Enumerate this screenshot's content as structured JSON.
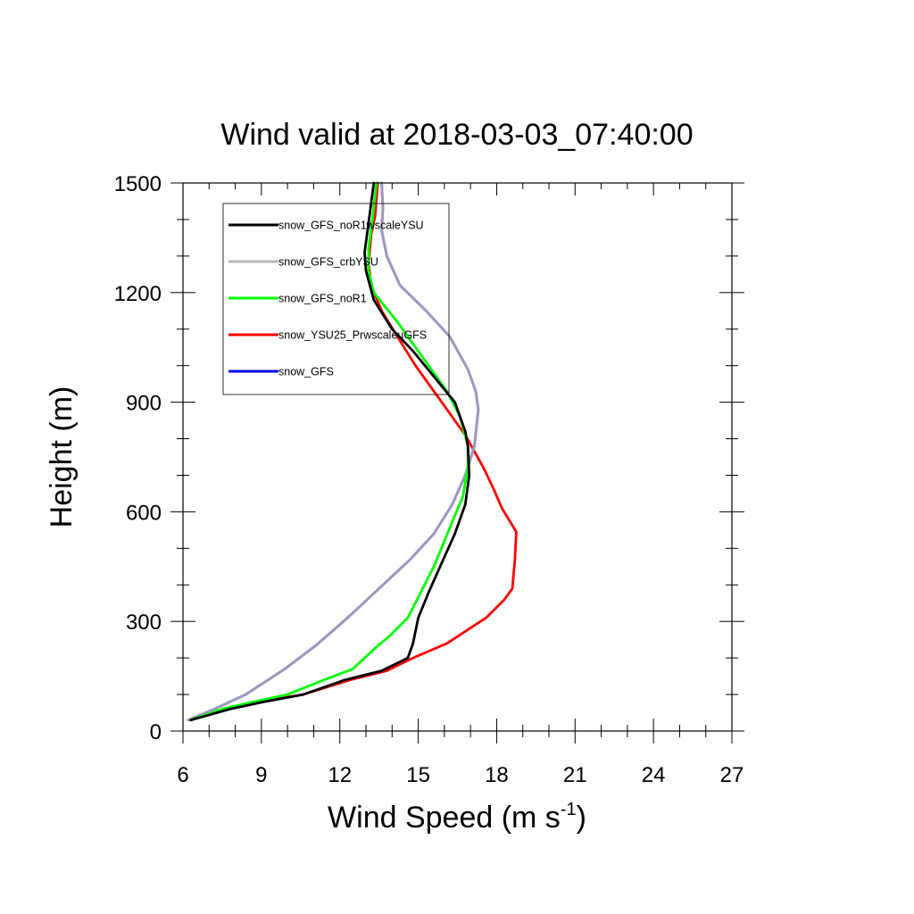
{
  "chart_data": {
    "type": "line",
    "title": "Wind valid at 2018-03-03_07:40:00",
    "xlabel": "Wind Speed (m s",
    "xlabel_sup": "-1",
    "xlabel_end": ")",
    "ylabel": "Height (m)",
    "xlim": [
      6,
      27
    ],
    "ylim": [
      0,
      1500
    ],
    "x_ticks": [
      6,
      9,
      12,
      15,
      18,
      21,
      24,
      27
    ],
    "y_ticks": [
      0,
      300,
      600,
      900,
      1200,
      1500
    ],
    "legend_position": "top-left",
    "series": [
      {
        "name": "snow_YSU25_PrwscaleuGFS",
        "color": "#ff0000",
        "points": [
          [
            6.3,
            30
          ],
          [
            7.5,
            60
          ],
          [
            8.9,
            80
          ],
          [
            10.6,
            100
          ],
          [
            12.4,
            140
          ],
          [
            13.8,
            165
          ],
          [
            14.8,
            200
          ],
          [
            16.1,
            240
          ],
          [
            17.6,
            310
          ],
          [
            18.3,
            360
          ],
          [
            18.6,
            390
          ],
          [
            18.7,
            470
          ],
          [
            18.75,
            545
          ],
          [
            18.2,
            610
          ],
          [
            17.9,
            660
          ],
          [
            17.5,
            720
          ],
          [
            16.8,
            810
          ],
          [
            16.1,
            880
          ],
          [
            15.6,
            930
          ],
          [
            14.9,
            1000
          ],
          [
            14.2,
            1080
          ],
          [
            13.6,
            1150
          ],
          [
            13.2,
            1220
          ],
          [
            13.1,
            1280
          ],
          [
            13.2,
            1360
          ],
          [
            13.35,
            1410
          ],
          [
            13.45,
            1500
          ]
        ]
      },
      {
        "name": "snow_GFS",
        "color": "#0000ff",
        "points": [
          [
            6.2,
            30
          ],
          [
            7.2,
            60
          ],
          [
            8.4,
            100
          ],
          [
            9.9,
            170
          ],
          [
            11.1,
            235
          ],
          [
            12.3,
            310
          ],
          [
            13.5,
            390
          ],
          [
            14.7,
            470
          ],
          [
            15.6,
            540
          ],
          [
            16.3,
            620
          ],
          [
            16.8,
            700
          ],
          [
            17.15,
            780
          ],
          [
            17.3,
            880
          ],
          [
            17.2,
            930
          ],
          [
            16.9,
            990
          ],
          [
            16.2,
            1080
          ],
          [
            15.3,
            1150
          ],
          [
            14.3,
            1220
          ],
          [
            13.8,
            1300
          ],
          [
            13.6,
            1370
          ],
          [
            13.65,
            1430
          ],
          [
            13.6,
            1500
          ]
        ]
      },
      {
        "name": "snow_GFS_crbYSU",
        "color": "#b5b5b5",
        "points": [
          [
            6.2,
            30
          ],
          [
            7.2,
            60
          ],
          [
            8.4,
            100
          ],
          [
            9.9,
            170
          ],
          [
            11.1,
            235
          ],
          [
            12.3,
            310
          ],
          [
            13.5,
            390
          ],
          [
            14.7,
            470
          ],
          [
            15.6,
            540
          ],
          [
            16.3,
            620
          ],
          [
            16.8,
            700
          ],
          [
            17.15,
            780
          ],
          [
            17.3,
            880
          ],
          [
            17.2,
            930
          ],
          [
            16.9,
            990
          ],
          [
            16.2,
            1080
          ],
          [
            15.3,
            1150
          ],
          [
            14.3,
            1220
          ],
          [
            13.8,
            1300
          ],
          [
            13.6,
            1370
          ],
          [
            13.65,
            1430
          ],
          [
            13.6,
            1500
          ]
        ]
      },
      {
        "name": "snow_GFS_noR1",
        "color": "#00ff00",
        "points": [
          [
            6.3,
            30
          ],
          [
            7.5,
            60
          ],
          [
            8.7,
            80
          ],
          [
            10.0,
            100
          ],
          [
            11.4,
            140
          ],
          [
            12.5,
            170
          ],
          [
            13.4,
            230
          ],
          [
            13.9,
            260
          ],
          [
            14.6,
            310
          ],
          [
            15.1,
            380
          ],
          [
            15.6,
            450
          ],
          [
            16.0,
            520
          ],
          [
            16.4,
            590
          ],
          [
            16.7,
            640
          ],
          [
            16.9,
            720
          ],
          [
            16.9,
            780
          ],
          [
            16.6,
            860
          ],
          [
            16.1,
            930
          ],
          [
            15.5,
            990
          ],
          [
            14.8,
            1060
          ],
          [
            14.2,
            1120
          ],
          [
            13.3,
            1200
          ],
          [
            13.1,
            1260
          ],
          [
            13.1,
            1320
          ],
          [
            13.25,
            1400
          ],
          [
            13.4,
            1500
          ]
        ]
      },
      {
        "name": "snow_GFS_noR1wscaleYSU",
        "color": "#000000",
        "points": [
          [
            6.3,
            30
          ],
          [
            7.8,
            60
          ],
          [
            9.1,
            80
          ],
          [
            10.6,
            100
          ],
          [
            12.2,
            140
          ],
          [
            13.6,
            165
          ],
          [
            14.6,
            200
          ],
          [
            14.8,
            240
          ],
          [
            15.0,
            310
          ],
          [
            15.4,
            380
          ],
          [
            15.9,
            460
          ],
          [
            16.4,
            540
          ],
          [
            16.8,
            620
          ],
          [
            16.95,
            700
          ],
          [
            16.9,
            780
          ],
          [
            16.8,
            820
          ],
          [
            16.4,
            900
          ],
          [
            15.6,
            970
          ],
          [
            14.8,
            1040
          ],
          [
            14.0,
            1100
          ],
          [
            13.3,
            1180
          ],
          [
            13.0,
            1260
          ],
          [
            12.95,
            1310
          ],
          [
            13.1,
            1390
          ],
          [
            13.3,
            1500
          ]
        ]
      }
    ]
  },
  "legend": {
    "items": [
      {
        "label": "snow_GFS_noR1wscaleYSU",
        "color": "#000000"
      },
      {
        "label": "snow_GFS_crbYSU",
        "color": "#b5b5b5"
      },
      {
        "label": "snow_GFS_noR1",
        "color": "#00ff00"
      },
      {
        "label": "snow_YSU25_PrwscaleuGFS",
        "color": "#ff0000"
      },
      {
        "label": "snow_GFS",
        "color": "#0000ff"
      }
    ]
  }
}
